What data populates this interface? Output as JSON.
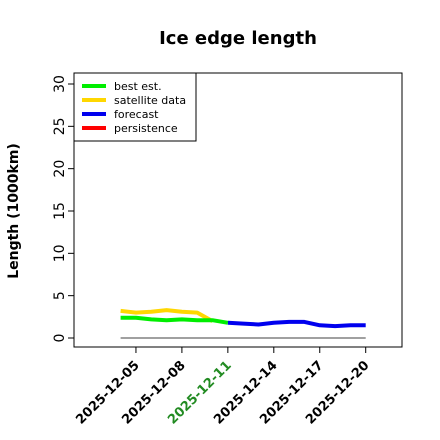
{
  "chart_data": {
    "type": "line",
    "title": "Ice edge length",
    "xlabel": "",
    "ylabel": "Length (1000km)",
    "ylim": [
      0,
      30
    ],
    "yticks": [
      "0",
      "5",
      "10",
      "15",
      "20",
      "25",
      "30"
    ],
    "xticks": [
      {
        "label": "2025-12-05",
        "date": "2025-12-05",
        "color": "#000000"
      },
      {
        "label": "2025-12-08",
        "date": "2025-12-08",
        "color": "#000000"
      },
      {
        "label": "2025-12-11",
        "date": "2025-12-11",
        "color": "#228B22"
      },
      {
        "label": "2025-12-14",
        "date": "2025-12-14",
        "color": "#000000"
      },
      {
        "label": "2025-12-17",
        "date": "2025-12-17",
        "color": "#000000"
      },
      {
        "label": "2025-12-20",
        "date": "2025-12-20",
        "color": "#000000"
      }
    ],
    "xlim": [
      "2025-12-02",
      "2025-12-22"
    ],
    "legend_position": "top-left",
    "legend": [
      {
        "name": "best est.",
        "color": "#00ee00"
      },
      {
        "name": "satellite data",
        "color": "#ffd700"
      },
      {
        "name": "forecast",
        "color": "#0000ee"
      },
      {
        "name": "persistence",
        "color": "#ff0000"
      }
    ],
    "series": [
      {
        "name": "satellite data",
        "color": "#ffd700",
        "points": [
          {
            "x": "2025-12-04",
            "y": 3.2
          },
          {
            "x": "2025-12-05",
            "y": 3.0
          },
          {
            "x": "2025-12-06",
            "y": 3.1
          },
          {
            "x": "2025-12-07",
            "y": 3.3
          },
          {
            "x": "2025-12-08",
            "y": 3.1
          },
          {
            "x": "2025-12-09",
            "y": 3.0
          },
          {
            "x": "2025-12-10",
            "y": 2.0
          }
        ]
      },
      {
        "name": "best est.",
        "color": "#00ee00",
        "points": [
          {
            "x": "2025-12-04",
            "y": 2.4
          },
          {
            "x": "2025-12-05",
            "y": 2.4
          },
          {
            "x": "2025-12-06",
            "y": 2.2
          },
          {
            "x": "2025-12-07",
            "y": 2.1
          },
          {
            "x": "2025-12-08",
            "y": 2.2
          },
          {
            "x": "2025-12-09",
            "y": 2.1
          },
          {
            "x": "2025-12-10",
            "y": 2.1
          },
          {
            "x": "2025-12-11",
            "y": 1.8
          }
        ]
      },
      {
        "name": "forecast",
        "color": "#0000ee",
        "points": [
          {
            "x": "2025-12-11",
            "y": 1.8
          },
          {
            "x": "2025-12-12",
            "y": 1.7
          },
          {
            "x": "2025-12-13",
            "y": 1.6
          },
          {
            "x": "2025-12-14",
            "y": 1.8
          },
          {
            "x": "2025-12-15",
            "y": 1.9
          },
          {
            "x": "2025-12-16",
            "y": 1.9
          },
          {
            "x": "2025-12-17",
            "y": 1.5
          },
          {
            "x": "2025-12-18",
            "y": 1.4
          },
          {
            "x": "2025-12-19",
            "y": 1.5
          },
          {
            "x": "2025-12-20",
            "y": 1.5
          }
        ]
      },
      {
        "name": "baseline",
        "color": "#808080",
        "points": [
          {
            "x": "2025-12-04",
            "y": 0
          },
          {
            "x": "2025-12-20",
            "y": 0
          }
        ]
      }
    ]
  }
}
